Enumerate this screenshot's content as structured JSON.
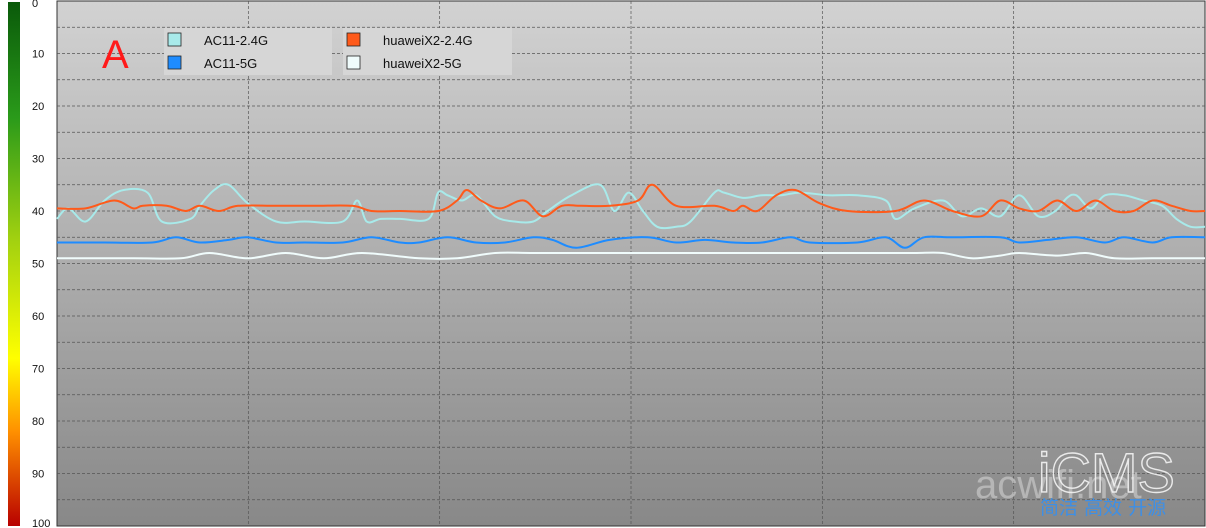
{
  "chart_data": {
    "type": "line",
    "title": "",
    "xlabel": "",
    "ylabel": "",
    "ylim": [
      0,
      100
    ],
    "y_inverted": true,
    "grid": true,
    "legend_position": "top-left",
    "y_ticks": [
      "0",
      "10",
      "20",
      "30",
      "40",
      "50",
      "60",
      "70",
      "80",
      "90",
      "100"
    ],
    "panel_marker": "A",
    "colors": {
      "background_top": "#d0d0d0",
      "background_bottom": "#8a8a8a",
      "grid": "#555555",
      "marker": "#ff1a1a",
      "scale_top": "#0a5a0a",
      "scale_mid": "#ffff00",
      "scale_bottom": "#cc0000"
    },
    "series": [
      {
        "name": "AC11-2.4G",
        "color": "#a8eaea",
        "x": [
          0,
          12,
          30,
          50,
          70,
          95,
          110,
          140,
          150,
          165,
          180,
          200,
          230,
          260,
          300,
          315,
          325,
          340,
          360,
          390,
          400,
          410,
          425,
          440,
          460,
          480,
          500,
          515,
          540,
          570,
          585,
          600,
          615,
          630,
          650,
          665,
          690,
          700,
          720,
          740,
          760,
          780,
          810,
          840,
          870,
          880,
          900,
          930,
          950,
          970,
          990,
          1010,
          1030,
          1048,
          1060,
          1070,
          1085,
          1100,
          1120,
          1140,
          1160,
          1175,
          1190,
          1205
        ],
        "values": [
          41.5,
          39.5,
          42,
          38,
          36,
          36.5,
          42,
          41.5,
          39,
          36,
          35,
          38.5,
          42,
          42,
          42,
          38,
          42,
          41.5,
          41.5,
          41.5,
          36.5,
          37,
          38,
          37,
          41,
          42,
          42,
          40,
          37,
          35,
          40,
          36.5,
          40,
          43,
          43,
          42,
          36.5,
          36.5,
          37.5,
          37,
          37,
          36.5,
          37,
          37,
          38,
          41.5,
          39.5,
          38,
          41,
          39.5,
          41,
          37,
          41,
          40,
          37.5,
          37,
          39.5,
          37,
          37,
          38,
          39,
          41.5,
          43,
          43
        ]
      },
      {
        "name": "AC11-5G",
        "color": "#1e8cff",
        "x": [
          0,
          50,
          100,
          125,
          150,
          180,
          200,
          230,
          260,
          300,
          330,
          360,
          380,
          410,
          440,
          470,
          500,
          520,
          545,
          580,
          620,
          650,
          680,
          710,
          740,
          770,
          790,
          840,
          870,
          890,
          910,
          940,
          990,
          1010,
          1040,
          1070,
          1100,
          1120,
          1150,
          1170,
          1205
        ],
        "values": [
          46,
          46,
          46,
          45,
          46,
          45.5,
          45,
          46,
          46,
          46,
          45,
          46,
          46,
          45,
          46,
          46,
          45,
          45.5,
          47,
          45.5,
          45,
          46,
          45.5,
          46,
          46,
          45,
          46,
          46,
          45,
          47,
          45,
          45,
          45,
          46,
          45.5,
          45,
          46,
          45,
          46,
          45,
          45
        ]
      },
      {
        "name": "huaweiX2-2.4G",
        "color": "#ff5a1a",
        "x": [
          0,
          30,
          60,
          80,
          90,
          115,
          135,
          150,
          170,
          190,
          230,
          270,
          310,
          330,
          360,
          400,
          420,
          430,
          445,
          465,
          490,
          510,
          530,
          550,
          580,
          610,
          625,
          650,
          690,
          710,
          720,
          735,
          755,
          775,
          800,
          830,
          880,
          910,
          940,
          970,
          990,
          1010,
          1030,
          1050,
          1070,
          1090,
          1110,
          1130,
          1150,
          1170,
          1190,
          1205
        ],
        "values": [
          39.5,
          39.5,
          38,
          39.5,
          39,
          39,
          40,
          39,
          40,
          39,
          39,
          39,
          39,
          40,
          40,
          40,
          38,
          36,
          38,
          39.5,
          38,
          41,
          39,
          39,
          39,
          38,
          35,
          39,
          39,
          40,
          39,
          40,
          37,
          36,
          38.5,
          40,
          40,
          38,
          40,
          41,
          38,
          39.5,
          40,
          38,
          40,
          38,
          40,
          40,
          38,
          39,
          40,
          40
        ]
      },
      {
        "name": "huaweiX2-5G",
        "color": "#f0fcfc",
        "x": [
          0,
          80,
          130,
          160,
          200,
          240,
          280,
          320,
          380,
          420,
          460,
          500,
          560,
          620,
          700,
          780,
          860,
          900,
          930,
          960,
          990,
          1010,
          1050,
          1080,
          1110,
          1150,
          1205
        ],
        "values": [
          49,
          49,
          49,
          48,
          49,
          48,
          49,
          48,
          49,
          49,
          48,
          48,
          48,
          48,
          48,
          48,
          48,
          48,
          48,
          49,
          48.5,
          48,
          48.5,
          48,
          49,
          49,
          49
        ]
      }
    ]
  },
  "watermark": {
    "logo": "iCMS",
    "site": "acwifi.net",
    "tagline": "简洁 高效 开源"
  }
}
